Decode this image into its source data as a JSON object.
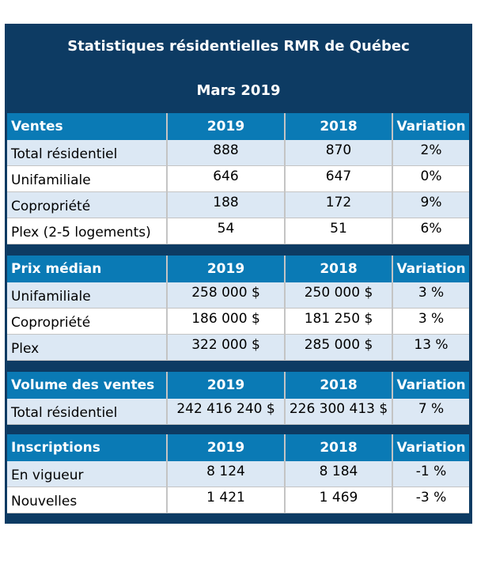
{
  "title": "Statistiques résidentielles RMR de Québec",
  "subtitle": "Mars 2019",
  "colors": {
    "frame": "#0d3b63",
    "header": "#0a7ab5",
    "row_alt": "#dce8f4"
  },
  "sections": [
    {
      "header": [
        "Ventes",
        "2019",
        "2018",
        "Variation"
      ],
      "rows": [
        [
          "Total résidentiel",
          "888",
          "870",
          "2%"
        ],
        [
          "Unifamiliale",
          "646",
          "647",
          "0%"
        ],
        [
          "Copropriété",
          "188",
          "172",
          "9%"
        ],
        [
          "Plex (2-5 logements)",
          "54",
          "51",
          "6%"
        ]
      ]
    },
    {
      "header": [
        "Prix médian",
        "2019",
        "2018",
        "Variation"
      ],
      "rows": [
        [
          "Unifamiliale",
          "258 000 $",
          "250 000 $",
          "3 %"
        ],
        [
          "Copropriété",
          "186 000 $",
          "181 250 $",
          "3 %"
        ],
        [
          "Plex",
          "322 000 $",
          "285 000 $",
          "13 %"
        ]
      ]
    },
    {
      "header": [
        "Volume des ventes",
        "2019",
        "2018",
        "Variation"
      ],
      "rows": [
        [
          "Total résidentiel",
          "242 416 240 $",
          "226 300 413 $",
          "7 %"
        ]
      ]
    },
    {
      "header": [
        "Inscriptions",
        "2019",
        "2018",
        "Variation"
      ],
      "rows": [
        [
          "En vigueur",
          "8 124",
          "8 184",
          "-1 %"
        ],
        [
          "Nouvelles",
          "1 421",
          "1 469",
          "-3 %"
        ]
      ]
    }
  ]
}
